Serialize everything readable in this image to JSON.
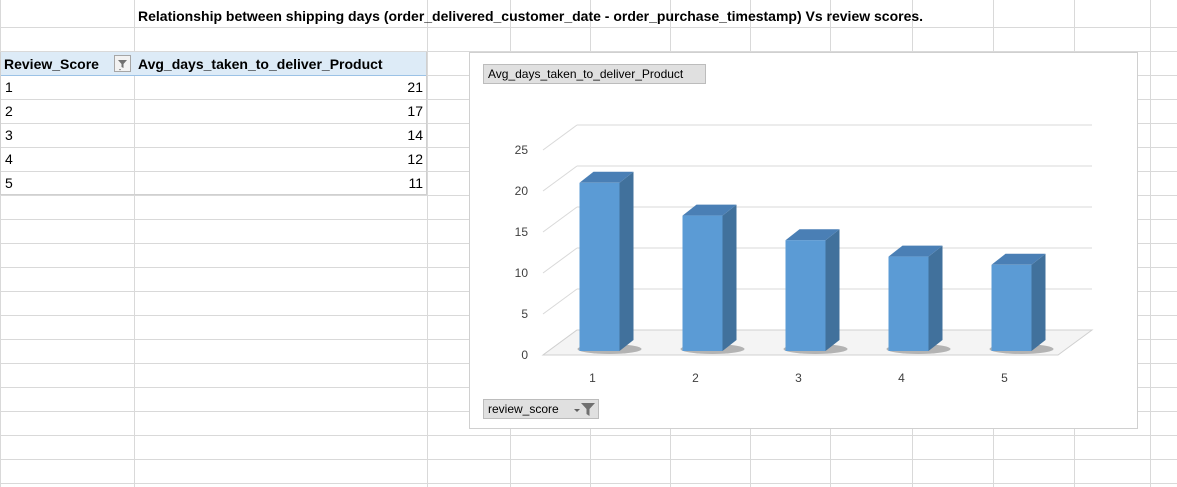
{
  "sheet": {
    "title": "Relationship between shipping days (order_delivered_customer_date - order_purchase_timestamp) Vs review scores."
  },
  "pivot": {
    "headers": [
      "Review_Score",
      "Avg_days_taken_to_deliver_Product"
    ],
    "rows": [
      {
        "score": "1",
        "avg": "21"
      },
      {
        "score": "2",
        "avg": "17"
      },
      {
        "score": "3",
        "avg": "14"
      },
      {
        "score": "4",
        "avg": "12"
      },
      {
        "score": "5",
        "avg": "11"
      }
    ]
  },
  "chart_buttons": {
    "value_field": "Avg_days_taken_to_deliver_Product",
    "axis_field": "review_score"
  },
  "colors": {
    "bar_front": "#5b9bd5",
    "bar_side": "#41719c",
    "bar_top": "#4a7fb5",
    "header_fill": "#ddebf7"
  },
  "chart_data": {
    "type": "bar",
    "categories": [
      "1",
      "2",
      "3",
      "4",
      "5"
    ],
    "values": [
      21,
      17,
      14,
      12,
      11
    ],
    "title": "",
    "xlabel": "",
    "ylabel": "",
    "ylim": [
      0,
      25
    ],
    "yticks": [
      0,
      5,
      10,
      15,
      20,
      25
    ],
    "three_d": true,
    "legend": "none",
    "grid": true
  }
}
